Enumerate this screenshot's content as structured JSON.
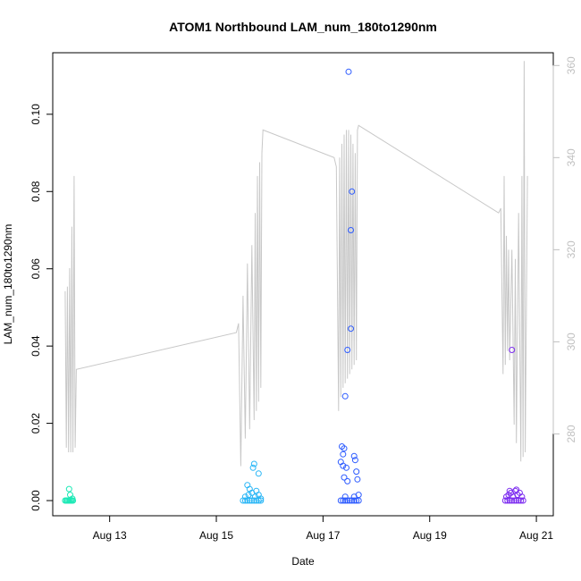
{
  "chart_data": {
    "type": "scatter",
    "title": "ATOM1 Northbound LAM_num_180to1290nm",
    "xlabel": "Date",
    "ylabel": "LAM_num_180to1290nm",
    "xlim": [
      "2023-08-12 00:00",
      "2023-08-21 06:00"
    ],
    "ylim": [
      -0.003,
      0.115
    ],
    "y2lim": [
      263,
      362
    ],
    "x_ticks": [
      {
        "date": "2023-08-13",
        "label": "Aug 13"
      },
      {
        "date": "2023-08-15",
        "label": "Aug 15"
      },
      {
        "date": "2023-08-17",
        "label": "Aug 17"
      },
      {
        "date": "2023-08-19",
        "label": "Aug 19"
      },
      {
        "date": "2023-08-21",
        "label": "Aug 21"
      }
    ],
    "y_ticks": [
      0.0,
      0.02,
      0.04,
      0.06,
      0.08,
      0.1
    ],
    "y_tick_labels": [
      "0.00",
      "0.02",
      "0.04",
      "0.06",
      "0.08",
      "0.10"
    ],
    "y2_ticks": [
      280,
      300,
      320,
      340,
      360
    ],
    "y2_tick_labels": [
      "280",
      "300",
      "320",
      "340",
      "360"
    ],
    "grid": false,
    "series": [
      {
        "color": "#1de9b6",
        "points": [
          [
            "2023-08-12 04:00",
            0.0
          ],
          [
            "2023-08-12 04:30",
            0.0
          ],
          [
            "2023-08-12 05:00",
            0.0
          ],
          [
            "2023-08-12 05:30",
            0.0
          ],
          [
            "2023-08-12 06:00",
            0.0
          ],
          [
            "2023-08-12 06:30",
            0.0
          ],
          [
            "2023-08-12 07:00",
            0.0
          ],
          [
            "2023-08-12 07:30",
            0.0
          ],
          [
            "2023-08-12 05:45",
            0.003
          ],
          [
            "2023-08-12 06:15",
            0.0015
          ],
          [
            "2023-08-12 07:15",
            0.0005
          ]
        ]
      },
      {
        "color": "#29b6f6",
        "points": [
          [
            "2023-08-15 12:00",
            0.0
          ],
          [
            "2023-08-15 13:00",
            0.0
          ],
          [
            "2023-08-15 14:00",
            0.0
          ],
          [
            "2023-08-15 15:00",
            0.0
          ],
          [
            "2023-08-15 16:00",
            0.0
          ],
          [
            "2023-08-15 17:00",
            0.0
          ],
          [
            "2023-08-15 18:00",
            0.0
          ],
          [
            "2023-08-15 19:00",
            0.0
          ],
          [
            "2023-08-15 20:00",
            0.0
          ],
          [
            "2023-08-15 13:00",
            0.001
          ],
          [
            "2023-08-15 14:30",
            0.0015
          ],
          [
            "2023-08-15 16:00",
            0.002
          ],
          [
            "2023-08-15 17:30",
            0.001
          ],
          [
            "2023-08-15 19:00",
            0.0015
          ],
          [
            "2023-08-15 14:00",
            0.004
          ],
          [
            "2023-08-15 15:00",
            0.003
          ],
          [
            "2023-08-15 17:00",
            0.0095
          ],
          [
            "2023-08-15 16:30",
            0.0085
          ],
          [
            "2023-08-15 19:00",
            0.007
          ],
          [
            "2023-08-15 18:00",
            0.0025
          ],
          [
            "2023-08-15 20:00",
            0.0005
          ]
        ]
      },
      {
        "color": "#2d5bff",
        "points": [
          [
            "2023-08-17 08:00",
            0.0
          ],
          [
            "2023-08-17 09:00",
            0.0
          ],
          [
            "2023-08-17 10:00",
            0.0
          ],
          [
            "2023-08-17 11:00",
            0.0
          ],
          [
            "2023-08-17 12:00",
            0.0
          ],
          [
            "2023-08-17 13:00",
            0.0
          ],
          [
            "2023-08-17 14:00",
            0.0
          ],
          [
            "2023-08-17 15:00",
            0.0
          ],
          [
            "2023-08-17 16:00",
            0.0
          ],
          [
            "2023-08-17 10:00",
            0.001
          ],
          [
            "2023-08-17 14:00",
            0.001
          ],
          [
            "2023-08-17 16:00",
            0.0015
          ],
          [
            "2023-08-17 08:30",
            0.014
          ],
          [
            "2023-08-17 09:30",
            0.0135
          ],
          [
            "2023-08-17 09:00",
            0.012
          ],
          [
            "2023-08-17 08:00",
            0.01
          ],
          [
            "2023-08-17 09:00",
            0.009
          ],
          [
            "2023-08-17 10:30",
            0.0085
          ],
          [
            "2023-08-17 09:30",
            0.006
          ],
          [
            "2023-08-17 11:00",
            0.005
          ],
          [
            "2023-08-17 14:00",
            0.0115
          ],
          [
            "2023-08-17 14:30",
            0.0105
          ],
          [
            "2023-08-17 15:00",
            0.0075
          ],
          [
            "2023-08-17 15:30",
            0.0055
          ],
          [
            "2023-08-17 10:00",
            0.027
          ],
          [
            "2023-08-17 11:00",
            0.039
          ],
          [
            "2023-08-17 12:30",
            0.0445
          ],
          [
            "2023-08-17 12:30",
            0.07
          ],
          [
            "2023-08-17 13:00",
            0.08
          ],
          [
            "2023-08-17 11:30",
            0.111
          ]
        ]
      },
      {
        "color": "#7c2cf0",
        "points": [
          [
            "2023-08-20 10:00",
            0.0
          ],
          [
            "2023-08-20 11:00",
            0.0
          ],
          [
            "2023-08-20 12:00",
            0.0
          ],
          [
            "2023-08-20 13:00",
            0.0
          ],
          [
            "2023-08-20 14:00",
            0.0
          ],
          [
            "2023-08-20 15:00",
            0.0
          ],
          [
            "2023-08-20 16:00",
            0.0
          ],
          [
            "2023-08-20 17:00",
            0.0
          ],
          [
            "2023-08-20 18:00",
            0.0
          ],
          [
            "2023-08-20 10:30",
            0.001
          ],
          [
            "2023-08-20 11:30",
            0.0015
          ],
          [
            "2023-08-20 12:30",
            0.002
          ],
          [
            "2023-08-20 13:30",
            0.001
          ],
          [
            "2023-08-20 14:30",
            0.0025
          ],
          [
            "2023-08-20 15:30",
            0.0015
          ],
          [
            "2023-08-20 16:30",
            0.002
          ],
          [
            "2023-08-20 17:30",
            0.001
          ],
          [
            "2023-08-20 12:00",
            0.0025
          ],
          [
            "2023-08-20 15:00",
            0.0028
          ],
          [
            "2023-08-20 13:00",
            0.039
          ]
        ]
      }
    ],
    "secondary_line": {
      "color": "#c8c8c8",
      "points": [
        [
          "2023-08-12 04:00",
          311.0
        ],
        [
          "2023-08-12 04:30",
          277.0
        ],
        [
          "2023-08-12 05:00",
          312.0
        ],
        [
          "2023-08-12 05:30",
          276.0
        ],
        [
          "2023-08-12 06:00",
          316.0
        ],
        [
          "2023-08-12 06:30",
          276.0
        ],
        [
          "2023-08-12 07:00",
          325.0
        ],
        [
          "2023-08-12 07:30",
          276.0
        ],
        [
          "2023-08-12 08:00",
          336.0
        ],
        [
          "2023-08-12 08:30",
          277.0
        ],
        [
          "2023-08-12 09:00",
          294.0
        ],
        [
          "2023-08-15 09:00",
          302.0
        ],
        [
          "2023-08-15 10:00",
          304.0
        ],
        [
          "2023-08-15 11:00",
          273.0
        ],
        [
          "2023-08-15 12:00",
          310.0
        ],
        [
          "2023-08-15 13:00",
          279.0
        ],
        [
          "2023-08-15 14:00",
          317.0
        ],
        [
          "2023-08-15 15:00",
          281.0
        ],
        [
          "2023-08-15 16:00",
          321.0
        ],
        [
          "2023-08-15 17:00",
          283.0
        ],
        [
          "2023-08-15 17:30",
          328.0
        ],
        [
          "2023-08-15 18:00",
          285.0
        ],
        [
          "2023-08-15 18:30",
          336.0
        ],
        [
          "2023-08-15 19:00",
          287.0
        ],
        [
          "2023-08-15 19:30",
          339.0
        ],
        [
          "2023-08-15 20:00",
          290.0
        ],
        [
          "2023-08-15 20:30",
          341.0
        ],
        [
          "2023-08-15 21:00",
          346.0
        ],
        [
          "2023-08-17 05:00",
          340.0
        ],
        [
          "2023-08-17 06:00",
          338.0
        ],
        [
          "2023-08-17 07:00",
          285.0
        ],
        [
          "2023-08-17 07:30",
          340.0
        ],
        [
          "2023-08-17 08:00",
          288.0
        ],
        [
          "2023-08-17 08:30",
          343.0
        ],
        [
          "2023-08-17 09:00",
          290.0
        ],
        [
          "2023-08-17 09:30",
          345.0
        ],
        [
          "2023-08-17 10:00",
          291.0
        ],
        [
          "2023-08-17 10:30",
          346.0
        ],
        [
          "2023-08-17 11:00",
          292.0
        ],
        [
          "2023-08-17 11:30",
          346.0
        ],
        [
          "2023-08-17 12:00",
          293.0
        ],
        [
          "2023-08-17 12:30",
          345.0
        ],
        [
          "2023-08-17 13:00",
          294.0
        ],
        [
          "2023-08-17 13:30",
          343.0
        ],
        [
          "2023-08-17 14:00",
          295.0
        ],
        [
          "2023-08-17 14:30",
          341.0
        ],
        [
          "2023-08-17 15:00",
          296.0
        ],
        [
          "2023-08-17 15:30",
          346.0
        ],
        [
          "2023-08-17 16:00",
          347.0
        ],
        [
          "2023-08-20 07:00",
          328.0
        ],
        [
          "2023-08-20 08:00",
          329.0
        ],
        [
          "2023-08-20 09:00",
          293.0
        ],
        [
          "2023-08-20 09:30",
          336.0
        ],
        [
          "2023-08-20 10:00",
          295.0
        ],
        [
          "2023-08-20 10:30",
          323.0
        ],
        [
          "2023-08-20 11:00",
          298.0
        ],
        [
          "2023-08-20 11:30",
          320.0
        ],
        [
          "2023-08-20 12:00",
          296.0
        ],
        [
          "2023-08-20 13:00",
          320.0
        ],
        [
          "2023-08-20 14:00",
          282.0
        ],
        [
          "2023-08-20 14:30",
          318.0
        ],
        [
          "2023-08-20 15:00",
          278.0
        ],
        [
          "2023-08-20 16:00",
          328.0
        ],
        [
          "2023-08-20 17:00",
          274.0
        ],
        [
          "2023-08-20 17:30",
          336.0
        ],
        [
          "2023-08-20 18:00",
          275.0
        ],
        [
          "2023-08-20 18:30",
          361.0
        ],
        [
          "2023-08-20 19:00",
          276.0
        ],
        [
          "2023-08-20 20:00",
          336.0
        ]
      ]
    }
  }
}
